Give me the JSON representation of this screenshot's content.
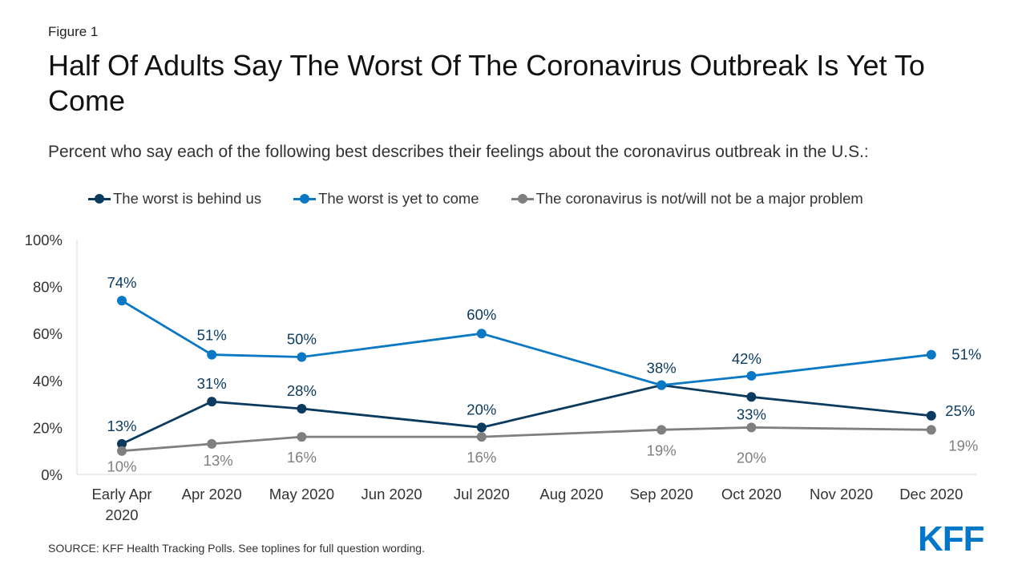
{
  "figure_label": "Figure 1",
  "title": "Half Of Adults Say The Worst Of The Coronavirus Outbreak Is Yet To Come",
  "subtitle": "Percent who say each of the following best describes their feelings about the coronavirus outbreak in the U.S.:",
  "source": "SOURCE: KFF Health Tracking Polls. See toplines for full question wording.",
  "logo": "KFF",
  "chart_data": {
    "type": "line",
    "categories": [
      [
        "Early Apr",
        "2020"
      ],
      [
        "Apr 2020"
      ],
      [
        "May 2020"
      ],
      [
        "Jun 2020"
      ],
      [
        "Jul 2020"
      ],
      [
        "Aug 2020"
      ],
      [
        "Sep 2020"
      ],
      [
        "Oct 2020"
      ],
      [
        "Nov 2020"
      ],
      [
        "Dec 2020"
      ]
    ],
    "y_ticks": [
      "0%",
      "20%",
      "40%",
      "60%",
      "80%",
      "100%"
    ],
    "ylim": [
      0,
      100
    ],
    "legend_position": "top",
    "series": [
      {
        "name": "The worst is behind us",
        "color": "#0a3a5e",
        "points": [
          [
            0,
            13
          ],
          [
            1,
            31
          ],
          [
            2,
            28
          ],
          [
            4,
            20
          ],
          [
            6,
            38
          ],
          [
            7,
            33
          ],
          [
            9,
            25
          ]
        ],
        "labels": [
          "13%",
          "31%",
          "28%",
          "20%",
          "",
          "33%",
          "25%"
        ]
      },
      {
        "name": "The worst is yet to come",
        "color": "#0a78c3",
        "points": [
          [
            0,
            74
          ],
          [
            1,
            51
          ],
          [
            2,
            50
          ],
          [
            4,
            60
          ],
          [
            6,
            38
          ],
          [
            7,
            42
          ],
          [
            9,
            51
          ]
        ],
        "labels": [
          "74%",
          "51%",
          "50%",
          "60%",
          "38%",
          "42%",
          "51%"
        ]
      },
      {
        "name": "The coronavirus is not/will not be a major problem",
        "color": "#7f7f7f",
        "points": [
          [
            0,
            10
          ],
          [
            1,
            13
          ],
          [
            2,
            16
          ],
          [
            4,
            16
          ],
          [
            6,
            19
          ],
          [
            7,
            20
          ],
          [
            9,
            19
          ]
        ],
        "labels": [
          "10%",
          "13%",
          "16%",
          "16%",
          "19%",
          "20%",
          "19%"
        ]
      }
    ]
  }
}
